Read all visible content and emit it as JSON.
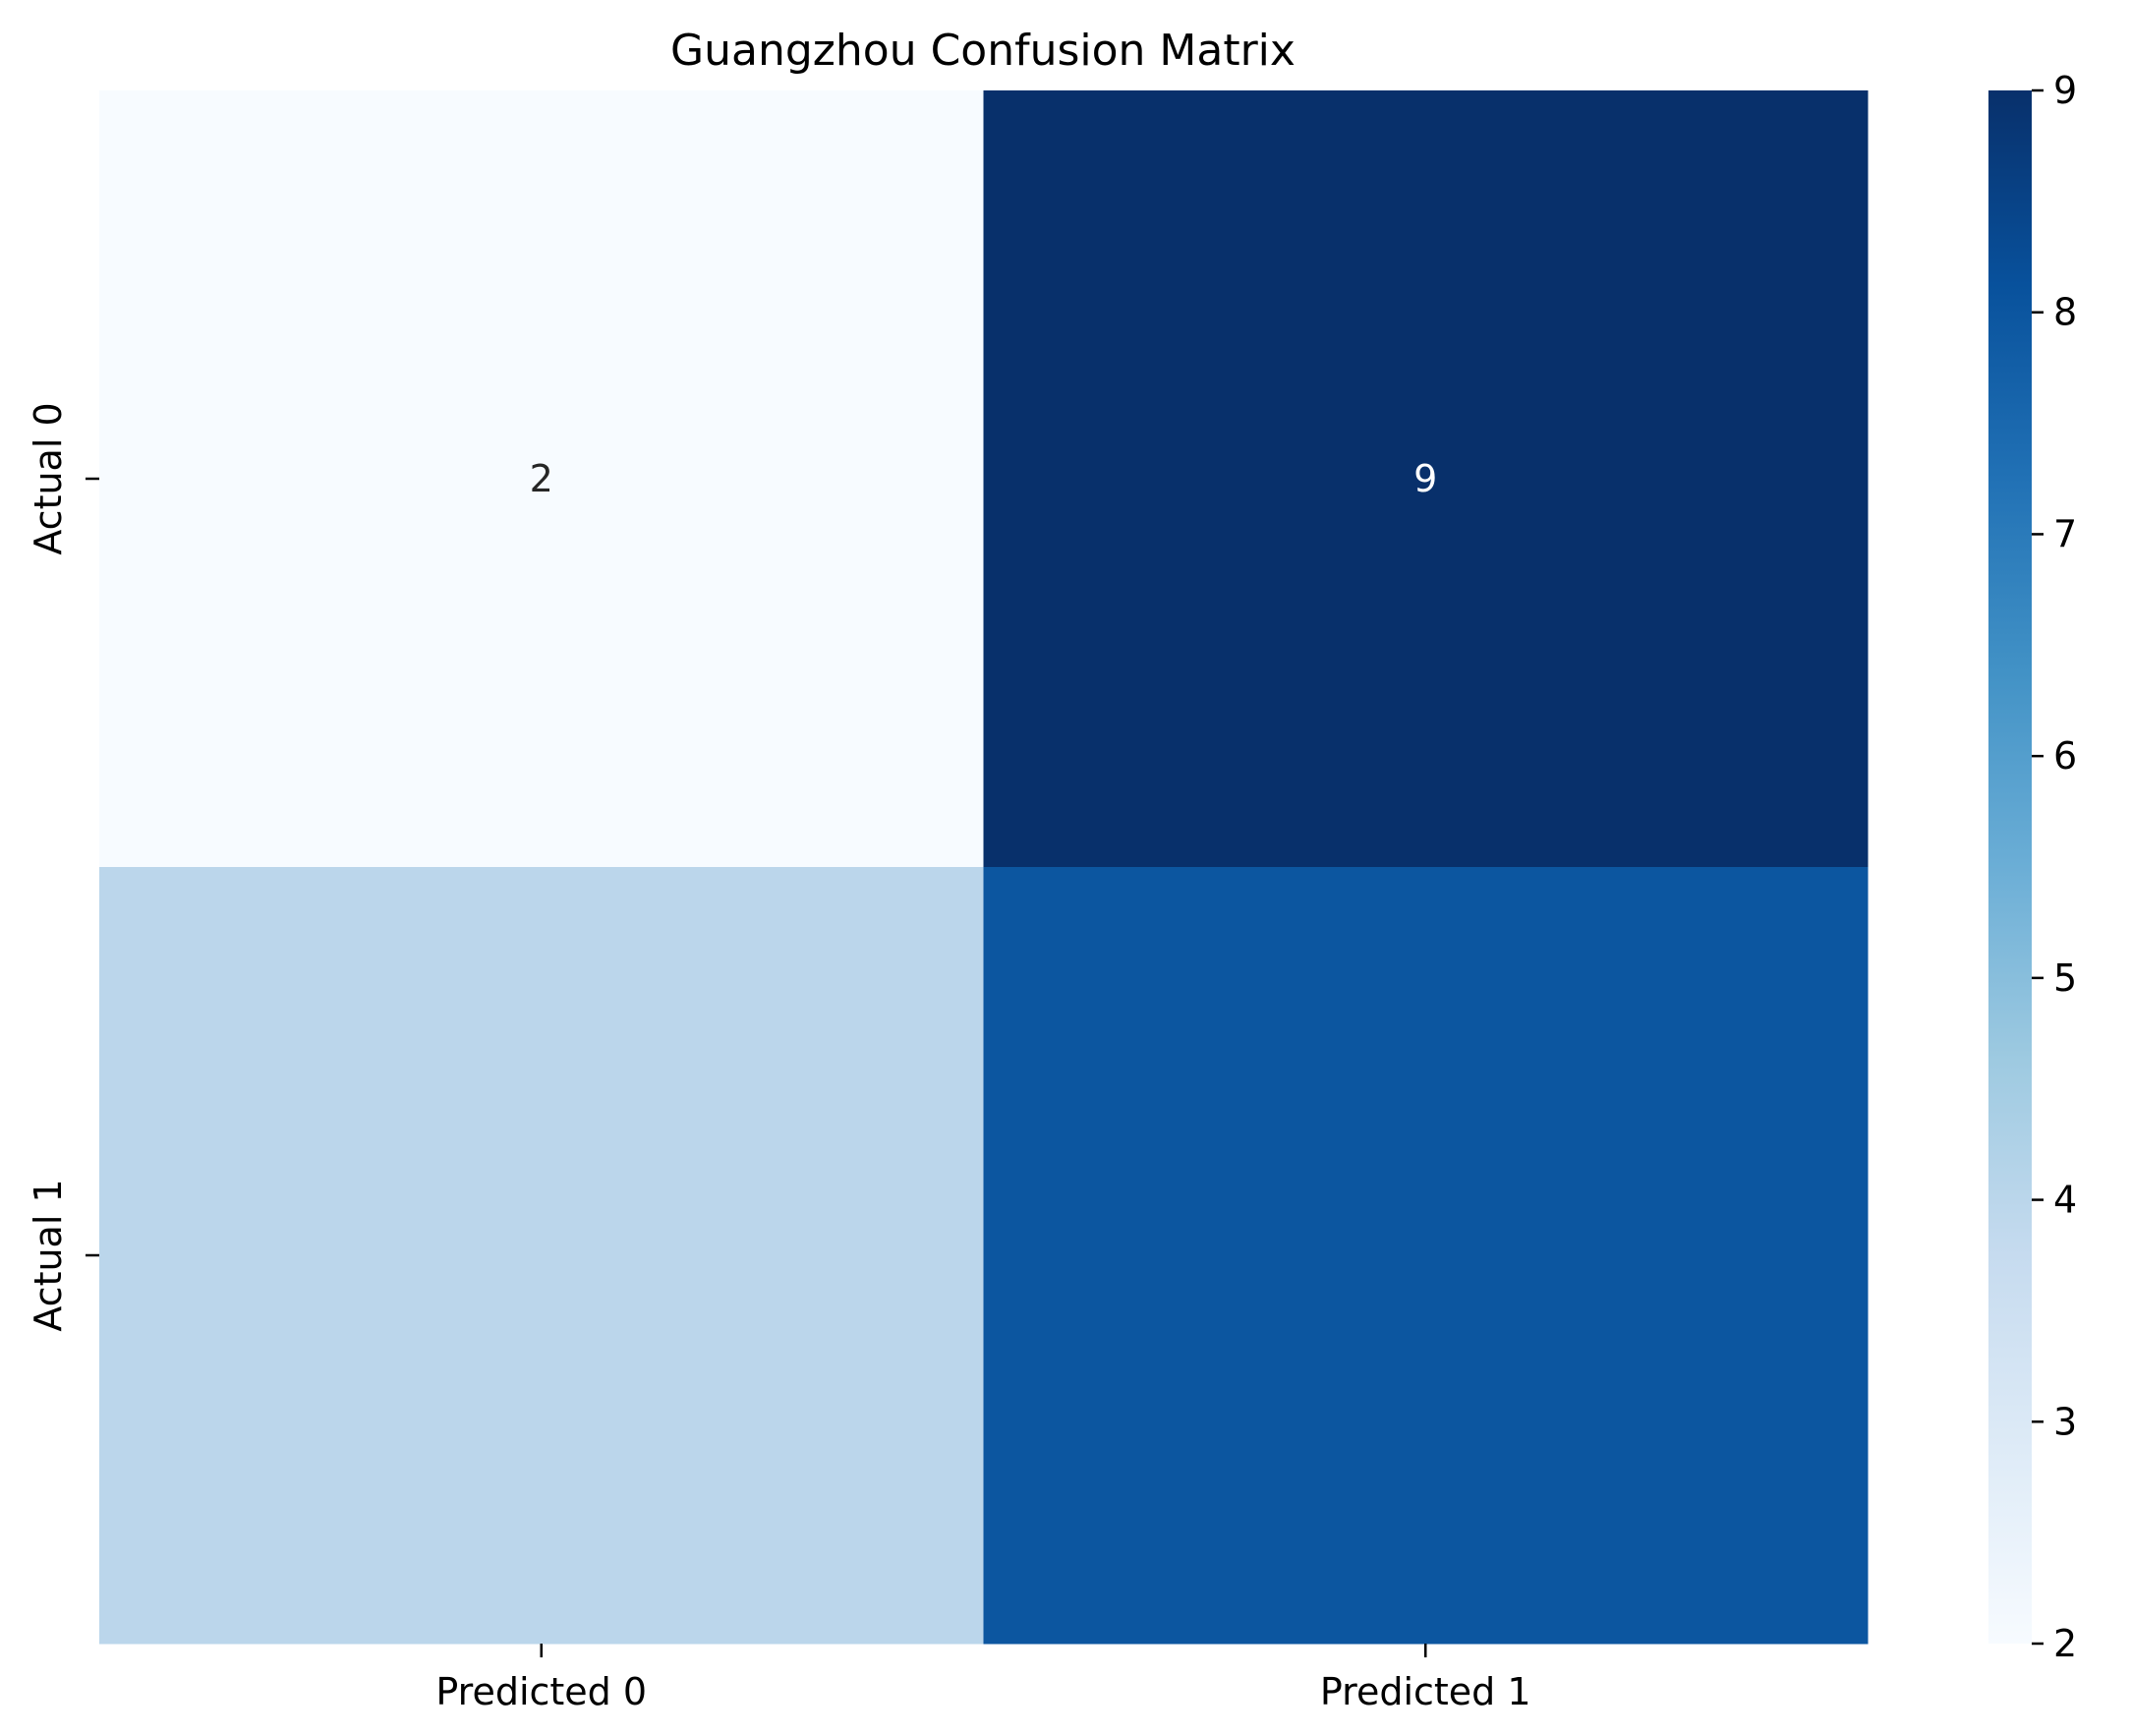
{
  "chart_data": {
    "type": "heatmap",
    "title": "Guangzhou Confusion Matrix",
    "xlabel": "",
    "ylabel": "",
    "x_categories": [
      "Predicted 0",
      "Predicted 1"
    ],
    "y_categories": [
      "Actual 0",
      "Actual 1"
    ],
    "matrix": [
      [
        2,
        9
      ],
      [
        4,
        8
      ]
    ],
    "cell_labels": [
      [
        "2",
        "9"
      ],
      [
        "",
        ""
      ]
    ],
    "colormap": "Blues",
    "colorbar": {
      "range": [
        2,
        9
      ],
      "ticks": [
        "2",
        "3",
        "4",
        "5",
        "6",
        "7",
        "8",
        "9"
      ]
    },
    "colors": {
      "low": "#f7fbff",
      "high": "#08306b",
      "annot_light": "#ffffff",
      "annot_dark": "#262626"
    }
  }
}
